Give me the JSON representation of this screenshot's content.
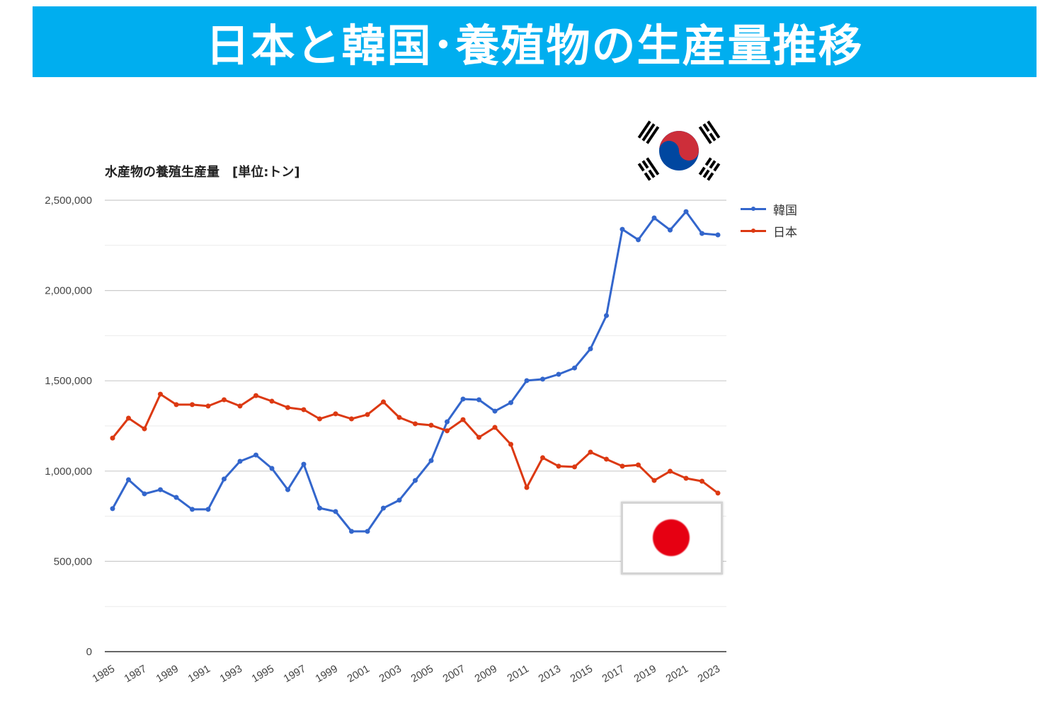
{
  "banner": {
    "title": "日本と韓国･養殖物の生産量推移"
  },
  "flags": {
    "korea_icon": "south-korea-flag",
    "japan_icon": "japan-flag"
  },
  "chart_data": {
    "type": "line",
    "title": "水産物の養殖生産量　[単位:トン]",
    "xlabel": "",
    "ylabel": "",
    "ylim": [
      0,
      2500000
    ],
    "yticks": [
      0,
      500000,
      1000000,
      1500000,
      2000000,
      2500000
    ],
    "ytick_labels": [
      "0",
      "500,000",
      "1,000,000",
      "1,500,000",
      "2,000,000",
      "2,500,000"
    ],
    "grid": true,
    "legend_position": "top-right",
    "x": [
      1985,
      1986,
      1987,
      1988,
      1989,
      1990,
      1991,
      1992,
      1993,
      1994,
      1995,
      1996,
      1997,
      1998,
      1999,
      2000,
      2001,
      2002,
      2003,
      2004,
      2005,
      2006,
      2007,
      2008,
      2009,
      2010,
      2011,
      2012,
      2013,
      2014,
      2015,
      2016,
      2017,
      2018,
      2019,
      2020,
      2021,
      2022,
      2023
    ],
    "xtick_labels": [
      "1985",
      "1987",
      "1989",
      "1991",
      "1993",
      "1995",
      "1997",
      "1999",
      "2001",
      "2003",
      "2005",
      "2007",
      "2009",
      "2011",
      "2013",
      "2015",
      "2017",
      "2019",
      "2021",
      "2023"
    ],
    "series": [
      {
        "name": "韓国",
        "color": "#3366cc",
        "values": [
          792000,
          952000,
          874000,
          897000,
          854000,
          788000,
          788000,
          956000,
          1054000,
          1089000,
          1015000,
          897000,
          1038000,
          795000,
          776000,
          666000,
          666000,
          795000,
          839000,
          948000,
          1058000,
          1273000,
          1399000,
          1395000,
          1332000,
          1379000,
          1501000,
          1509000,
          1536000,
          1571000,
          1677000,
          1861000,
          2339000,
          2281000,
          2402000,
          2335000,
          2437000,
          2316000,
          2308000
        ]
      },
      {
        "name": "日本",
        "color": "#dc3912",
        "values": [
          1183000,
          1293000,
          1234000,
          1426000,
          1368000,
          1368000,
          1360000,
          1395000,
          1360000,
          1418000,
          1387000,
          1352000,
          1340000,
          1289000,
          1317000,
          1289000,
          1313000,
          1383000,
          1297000,
          1262000,
          1254000,
          1223000,
          1285000,
          1187000,
          1242000,
          1148000,
          909000,
          1074000,
          1027000,
          1023000,
          1105000,
          1066000,
          1027000,
          1034000,
          948000,
          999000,
          960000,
          944000,
          878000
        ]
      }
    ]
  }
}
